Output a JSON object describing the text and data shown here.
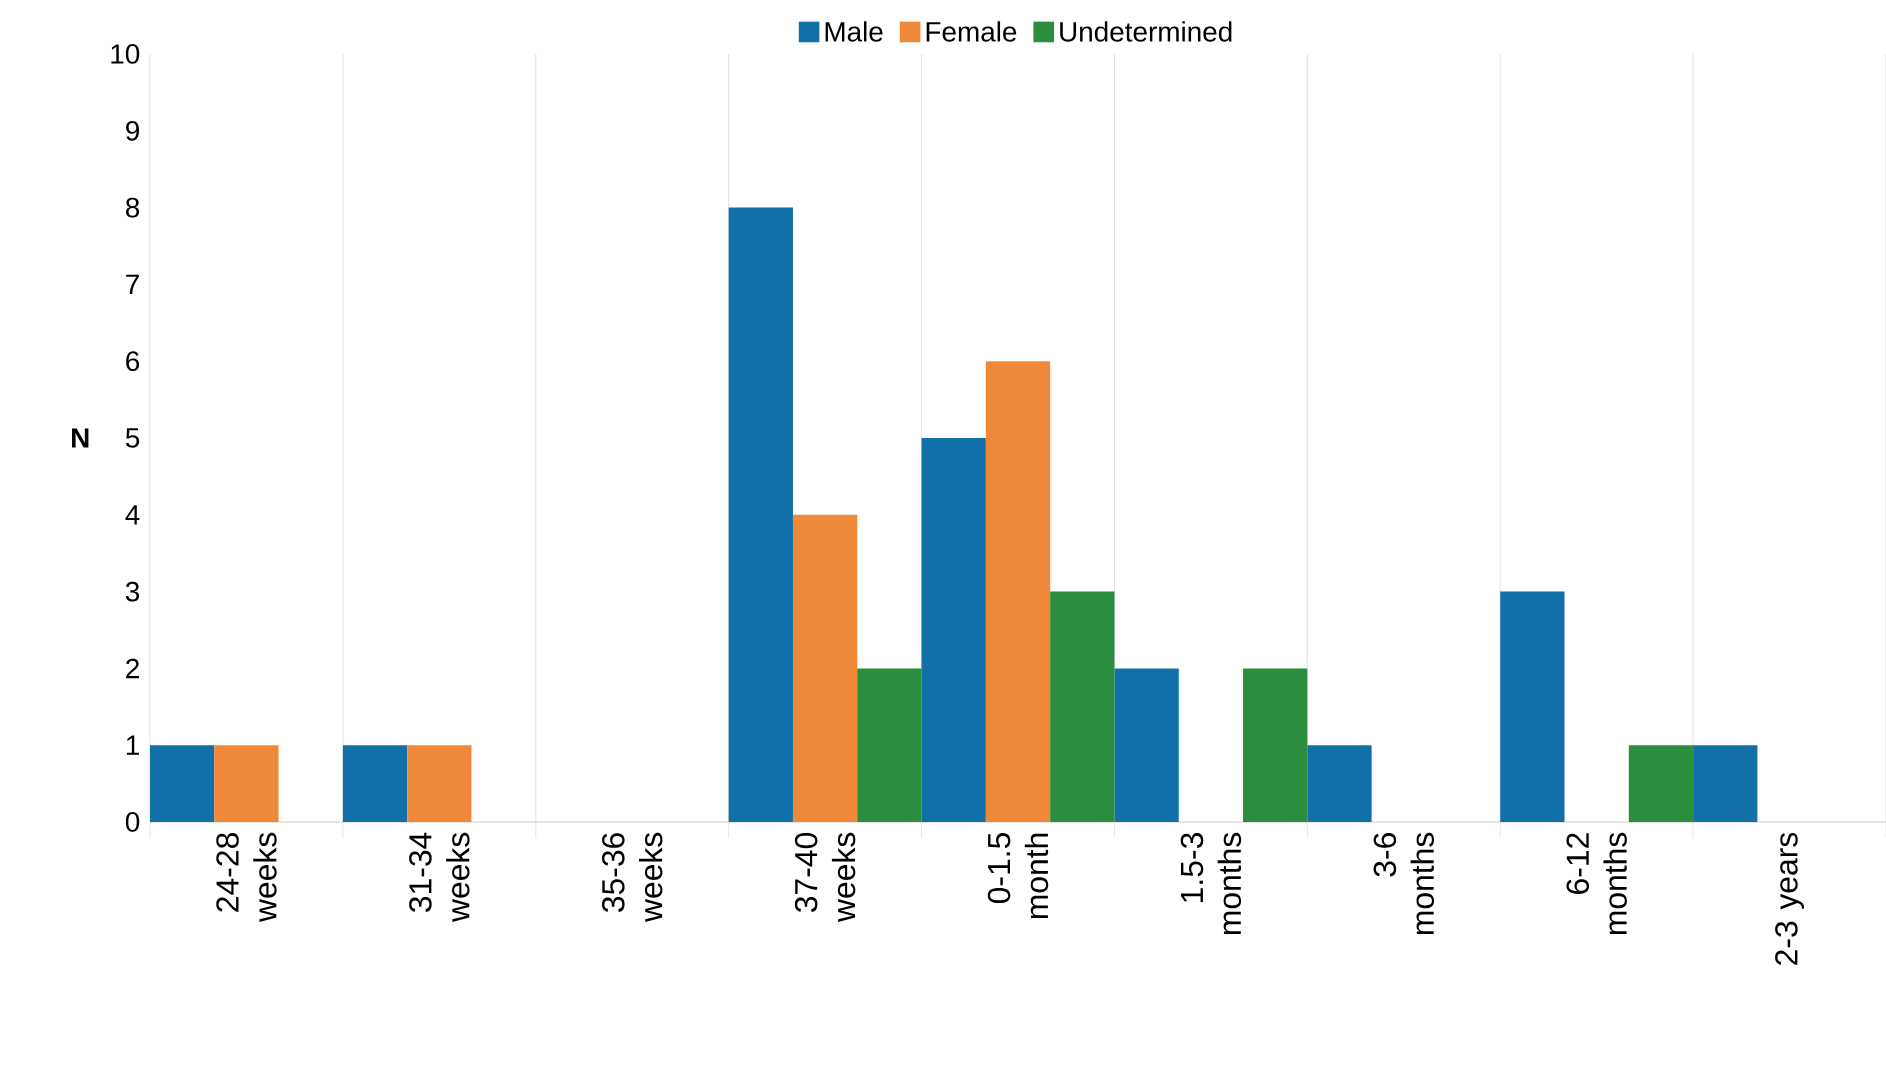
{
  "chart_data": {
    "type": "bar",
    "ylabel": "N",
    "categories": [
      "24-28 weeks",
      "31-34 weeks",
      "35-36 weeks",
      "37-40 weeks",
      "0-1.5 month",
      "1.5-3 months",
      "3-6 months",
      "6-12 months",
      "2-3 years"
    ],
    "series": [
      {
        "name": "Male",
        "color": "#1170a8",
        "values": [
          1,
          1,
          0,
          8,
          5,
          2,
          1,
          3,
          1
        ]
      },
      {
        "name": "Female",
        "color": "#f0883a",
        "values": [
          1,
          1,
          0,
          4,
          6,
          0,
          0,
          0,
          0
        ]
      },
      {
        "name": "Undetermined",
        "color": "#2b8e3f",
        "values": [
          0,
          0,
          0,
          2,
          3,
          2,
          0,
          1,
          0
        ]
      }
    ],
    "ylim": [
      0,
      10
    ],
    "yticks": [
      0,
      1,
      2,
      3,
      4,
      5,
      6,
      7,
      8,
      9,
      10
    ],
    "grid": "x",
    "legend": "top"
  }
}
